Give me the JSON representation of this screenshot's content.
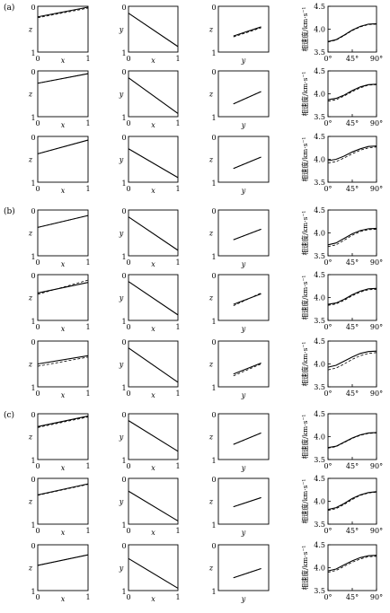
{
  "groups": [
    {
      "label": "(a)"
    },
    {
      "label": "(b)"
    },
    {
      "label": "(c)"
    }
  ],
  "axis_text": {
    "x": "x",
    "y": "y",
    "z": "z",
    "velocity_ylabel": "相速度/km·s⁻¹",
    "unit_ticks": [
      "0",
      "1"
    ],
    "angle_ticks": [
      "0°",
      "45°",
      "90°"
    ],
    "velocity_ticks": [
      "3.5",
      "4.0",
      "4.5"
    ]
  },
  "chart_data": {
    "type": "line",
    "description_axes": {
      "xz_panel": {
        "xlabel": "x",
        "ylabel": "z",
        "xlim": [
          0,
          1
        ],
        "ylim": [
          1,
          0
        ]
      },
      "xy_panel": {
        "xlabel": "x",
        "ylabel": "y",
        "xlim": [
          0,
          1
        ],
        "ylim": [
          1,
          0
        ]
      },
      "yz_panel": {
        "xlabel": "y",
        "ylabel": "z",
        "xlim": [
          0,
          1
        ],
        "ylim": [
          1,
          0
        ]
      },
      "velocity_panel": {
        "ylabel": "相速度/km·s⁻¹",
        "xlim": [
          0,
          90
        ],
        "ylim": [
          3.5,
          4.5
        ],
        "xticks": [
          0,
          45,
          90
        ],
        "yticks": [
          3.5,
          4.0,
          4.5
        ]
      }
    },
    "rows": [
      {
        "group": "a",
        "xz": {
          "solid": [
            [
              0.0,
              0.23
            ],
            [
              1.0,
              0.02
            ]
          ],
          "dashed": [
            [
              0.0,
              0.25
            ],
            [
              1.0,
              0.04
            ]
          ]
        },
        "xy": {
          "solid": [
            [
              0.0,
              0.15
            ],
            [
              1.0,
              0.88
            ]
          ]
        },
        "yz": {
          "solid": [
            [
              0.3,
              0.65
            ],
            [
              0.85,
              0.45
            ]
          ],
          "dashed": [
            [
              0.3,
              0.67
            ],
            [
              0.85,
              0.47
            ]
          ]
        },
        "vel": {
          "angles": [
            0,
            15,
            30,
            45,
            60,
            75,
            90
          ],
          "solid": [
            3.73,
            3.77,
            3.87,
            3.98,
            4.06,
            4.11,
            4.12
          ],
          "dashed": [
            3.72,
            3.76,
            3.86,
            3.97,
            4.05,
            4.1,
            4.11
          ]
        }
      },
      {
        "group": "a",
        "xz": {
          "solid": [
            [
              0.0,
              0.27
            ],
            [
              1.0,
              0.06
            ]
          ],
          "dashed": [
            [
              0.0,
              0.27
            ],
            [
              1.0,
              0.06
            ]
          ]
        },
        "xy": {
          "solid": [
            [
              0.0,
              0.15
            ],
            [
              1.0,
              0.93
            ]
          ]
        },
        "yz": {
          "solid": [
            [
              0.3,
              0.72
            ],
            [
              0.85,
              0.45
            ]
          ],
          "dashed": [
            [
              0.3,
              0.72
            ],
            [
              0.85,
              0.45
            ]
          ]
        },
        "vel": {
          "angles": [
            0,
            15,
            30,
            45,
            60,
            75,
            90
          ],
          "solid": [
            3.87,
            3.9,
            3.97,
            4.07,
            4.15,
            4.2,
            4.21
          ],
          "dashed": [
            3.84,
            3.87,
            3.95,
            4.05,
            4.13,
            4.19,
            4.2
          ]
        }
      },
      {
        "group": "a",
        "xz": {
          "solid": [
            [
              0.0,
              0.38
            ],
            [
              1.0,
              0.08
            ]
          ],
          "dashed": [
            [
              0.0,
              0.38
            ],
            [
              1.0,
              0.08
            ]
          ]
        },
        "xy": {
          "solid": [
            [
              0.0,
              0.27
            ],
            [
              1.0,
              0.9
            ]
          ]
        },
        "yz": {
          "solid": [
            [
              0.3,
              0.7
            ],
            [
              0.85,
              0.45
            ]
          ],
          "dashed": [
            [
              0.3,
              0.7
            ],
            [
              0.85,
              0.45
            ]
          ]
        },
        "vel": {
          "angles": [
            0,
            15,
            30,
            45,
            60,
            75,
            90
          ],
          "solid": [
            3.97,
            4.0,
            4.07,
            4.16,
            4.23,
            4.28,
            4.29
          ],
          "dashed": [
            3.92,
            3.95,
            4.03,
            4.12,
            4.2,
            4.25,
            4.27
          ]
        }
      },
      {
        "group": "b",
        "xz": {
          "solid": [
            [
              0.0,
              0.38
            ],
            [
              1.0,
              0.12
            ]
          ],
          "dashed": [
            [
              0.0,
              0.38
            ],
            [
              1.0,
              0.12
            ]
          ]
        },
        "xy": {
          "solid": [
            [
              0.0,
              0.15
            ],
            [
              1.0,
              0.88
            ]
          ]
        },
        "yz": {
          "solid": [
            [
              0.3,
              0.65
            ],
            [
              0.85,
              0.42
            ]
          ],
          "dashed": [
            [
              0.3,
              0.65
            ],
            [
              0.85,
              0.42
            ]
          ]
        },
        "vel": {
          "angles": [
            0,
            15,
            30,
            45,
            60,
            75,
            90
          ],
          "solid": [
            3.74,
            3.78,
            3.88,
            3.98,
            4.05,
            4.09,
            4.1
          ],
          "dashed": [
            3.7,
            3.74,
            3.84,
            3.95,
            4.03,
            4.07,
            4.08
          ]
        }
      },
      {
        "group": "b",
        "xz": {
          "solid": [
            [
              0.0,
              0.4
            ],
            [
              1.0,
              0.17
            ]
          ],
          "dashed": [
            [
              0.0,
              0.43
            ],
            [
              1.0,
              0.12
            ]
          ]
        },
        "xy": {
          "solid": [
            [
              0.0,
              0.15
            ],
            [
              1.0,
              0.88
            ]
          ]
        },
        "yz": {
          "solid": [
            [
              0.3,
              0.65
            ],
            [
              0.85,
              0.42
            ]
          ],
          "dashed": [
            [
              0.3,
              0.68
            ],
            [
              0.85,
              0.4
            ]
          ]
        },
        "vel": {
          "angles": [
            0,
            15,
            30,
            45,
            60,
            75,
            90
          ],
          "solid": [
            3.85,
            3.88,
            3.96,
            4.06,
            4.14,
            4.19,
            4.2
          ],
          "dashed": [
            3.83,
            3.86,
            3.94,
            4.04,
            4.12,
            4.17,
            4.18
          ]
        }
      },
      {
        "group": "b",
        "xz": {
          "solid": [
            [
              0.0,
              0.5
            ],
            [
              1.0,
              0.32
            ]
          ],
          "dashed": [
            [
              0.0,
              0.55
            ],
            [
              1.0,
              0.35
            ]
          ]
        },
        "xy": {
          "solid": [
            [
              0.0,
              0.15
            ],
            [
              1.0,
              0.9
            ]
          ]
        },
        "yz": {
          "solid": [
            [
              0.3,
              0.72
            ],
            [
              0.85,
              0.48
            ]
          ],
          "dashed": [
            [
              0.3,
              0.76
            ],
            [
              0.85,
              0.5
            ]
          ]
        },
        "vel": {
          "angles": [
            0,
            15,
            30,
            45,
            60,
            75,
            90
          ],
          "solid": [
            3.93,
            3.97,
            4.06,
            4.15,
            4.23,
            4.27,
            4.28
          ],
          "dashed": [
            3.87,
            3.91,
            4.0,
            4.1,
            4.18,
            4.23,
            4.25
          ]
        }
      },
      {
        "group": "c",
        "xz": {
          "solid": [
            [
              0.0,
              0.28
            ],
            [
              1.0,
              0.05
            ]
          ],
          "dashed": [
            [
              0.0,
              0.3
            ],
            [
              1.0,
              0.07
            ]
          ]
        },
        "xy": {
          "solid": [
            [
              0.0,
              0.15
            ],
            [
              1.0,
              0.82
            ]
          ]
        },
        "yz": {
          "solid": [
            [
              0.3,
              0.67
            ],
            [
              0.85,
              0.42
            ]
          ],
          "dashed": [
            [
              0.3,
              0.67
            ],
            [
              0.85,
              0.42
            ]
          ]
        },
        "vel": {
          "angles": [
            0,
            15,
            30,
            45,
            60,
            75,
            90
          ],
          "solid": [
            3.76,
            3.79,
            3.88,
            3.97,
            4.04,
            4.08,
            4.09
          ],
          "dashed": [
            3.75,
            3.78,
            3.87,
            3.96,
            4.03,
            4.07,
            4.08
          ]
        }
      },
      {
        "group": "c",
        "xz": {
          "solid": [
            [
              0.0,
              0.36
            ],
            [
              1.0,
              0.12
            ]
          ],
          "dashed": [
            [
              0.0,
              0.37
            ],
            [
              1.0,
              0.13
            ]
          ]
        },
        "xy": {
          "solid": [
            [
              0.0,
              0.28
            ],
            [
              1.0,
              0.93
            ]
          ]
        },
        "yz": {
          "solid": [
            [
              0.3,
              0.62
            ],
            [
              0.85,
              0.42
            ]
          ],
          "dashed": [
            [
              0.3,
              0.62
            ],
            [
              0.85,
              0.42
            ]
          ]
        },
        "vel": {
          "angles": [
            0,
            15,
            30,
            45,
            60,
            75,
            90
          ],
          "solid": [
            3.82,
            3.86,
            3.95,
            4.06,
            4.14,
            4.19,
            4.21
          ],
          "dashed": [
            3.8,
            3.84,
            3.93,
            4.04,
            4.13,
            4.18,
            4.2
          ]
        }
      },
      {
        "group": "c",
        "xz": {
          "solid": [
            [
              0.0,
              0.45
            ],
            [
              1.0,
              0.22
            ]
          ],
          "dashed": [
            [
              0.0,
              0.45
            ],
            [
              1.0,
              0.22
            ]
          ]
        },
        "xy": {
          "solid": [
            [
              0.0,
              0.3
            ],
            [
              1.0,
              0.95
            ]
          ]
        },
        "yz": {
          "solid": [
            [
              0.3,
              0.72
            ],
            [
              0.85,
              0.52
            ]
          ],
          "dashed": [
            [
              0.3,
              0.72
            ],
            [
              0.85,
              0.52
            ]
          ]
        },
        "vel": {
          "angles": [
            0,
            15,
            30,
            45,
            60,
            75,
            90
          ],
          "solid": [
            3.93,
            3.97,
            4.06,
            4.15,
            4.22,
            4.26,
            4.27
          ],
          "dashed": [
            3.9,
            3.94,
            4.03,
            4.12,
            4.19,
            4.24,
            4.25
          ]
        }
      }
    ]
  }
}
